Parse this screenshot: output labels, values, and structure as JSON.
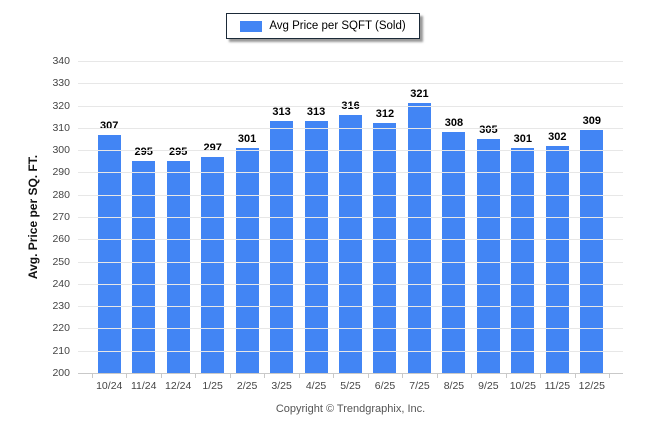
{
  "page": {
    "footer": "Copyright © Trendgraphix, Inc."
  },
  "legend": {
    "label": "Avg Price per SQFT (Sold)"
  },
  "colors": {
    "bar": "#4285f4",
    "grid": "#e7e7e7",
    "axis": "#c9c9c9",
    "tick_label": "#444444",
    "value_label": "#000000",
    "legend_border": "#1b2a38",
    "footer_text": "#555555",
    "background": "#ffffff"
  },
  "chart_data": {
    "type": "bar",
    "title": "",
    "xlabel": "",
    "ylabel": "Avg. Price per SQ. FT.",
    "series_name": "Avg Price per SQFT (Sold)",
    "categories": [
      "10/24",
      "11/24",
      "12/24",
      "1/25",
      "2/25",
      "3/25",
      "4/25",
      "5/25",
      "6/25",
      "7/25",
      "8/25",
      "9/25",
      "10/25",
      "11/25",
      "12/25"
    ],
    "values": [
      307,
      295,
      295,
      297,
      301,
      313,
      313,
      316,
      312,
      321,
      308,
      305,
      301,
      302,
      309
    ],
    "ylim": [
      200,
      340
    ],
    "ytick_step": 10,
    "grid": true,
    "value_labels": true,
    "legend_position": "top-center"
  }
}
